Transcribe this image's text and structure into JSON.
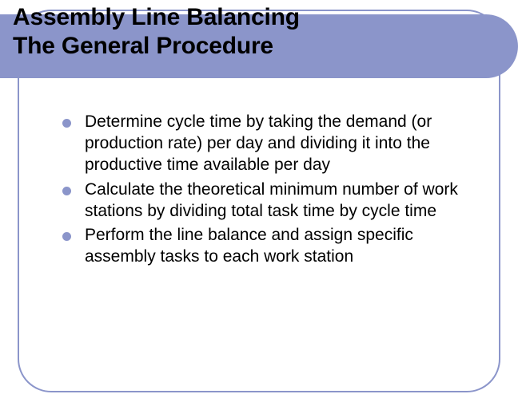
{
  "colors": {
    "accent": "#8b95ca",
    "background": "#ffffff",
    "text": "#000000"
  },
  "typography": {
    "title_fontsize": 30,
    "title_fontweight": "bold",
    "body_fontsize": 21,
    "font_family": "Arial"
  },
  "layout": {
    "slide_width": 648,
    "slide_height": 504,
    "card_border_radius": 42,
    "band_border_radius": 40
  },
  "title": {
    "line1": "Assembly Line Balancing",
    "line2": "The General Procedure"
  },
  "bullets": [
    "Determine cycle time by taking the demand (or production rate) per day and dividing it into the productive time available per day",
    "Calculate the theoretical minimum number of work stations by dividing total task time by cycle time",
    "Perform the line balance and assign specific assembly tasks to each work station"
  ]
}
